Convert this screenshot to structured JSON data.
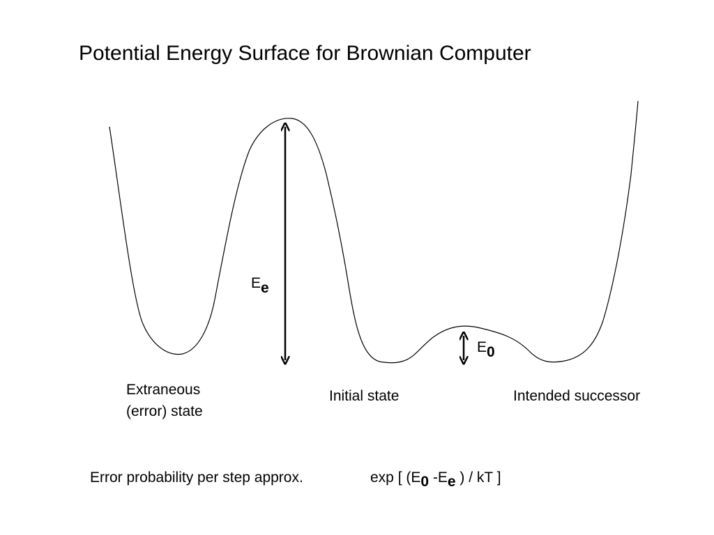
{
  "title": "Potential Energy Surface for Brownian Computer",
  "barrier_error": {
    "symbol": "E",
    "subscript": "e"
  },
  "barrier_step": {
    "symbol": "E",
    "subscript": "0"
  },
  "states": {
    "error_line1": "Extraneous",
    "error_line2": "(error) state",
    "initial": "Initial state",
    "successor": "Intended successor"
  },
  "formula": {
    "label": "Error probability per step approx.",
    "part1": "exp [ (E",
    "sub1": "0",
    "part2": " -E",
    "sub2": "e",
    "part3": " ) / kT ]"
  }
}
